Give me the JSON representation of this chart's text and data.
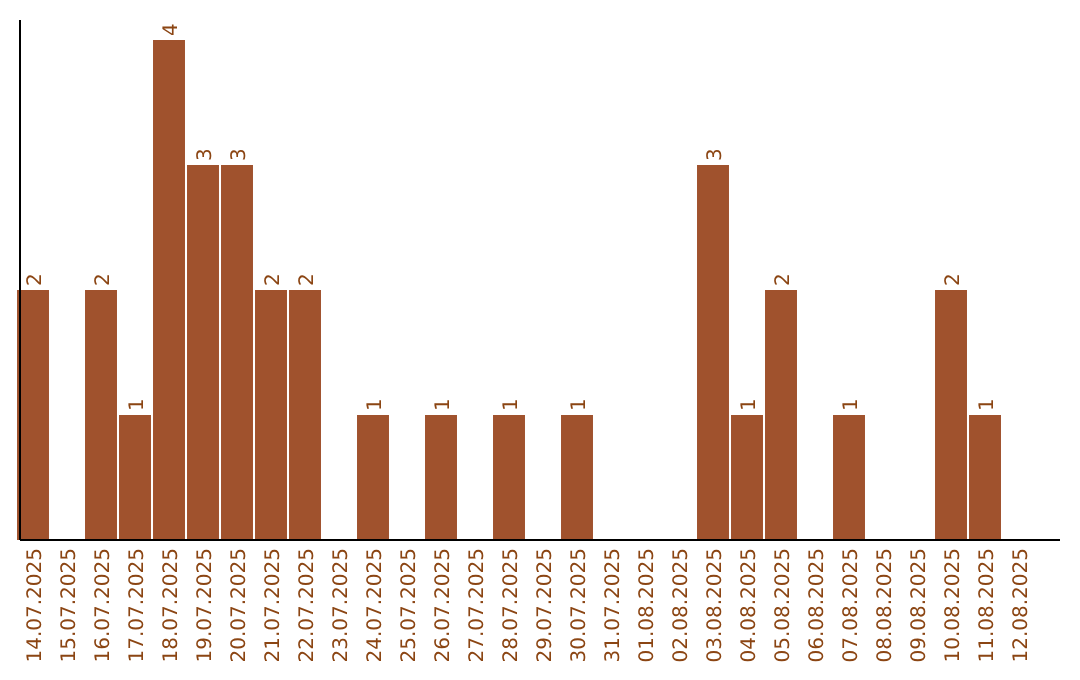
{
  "chart_data": {
    "type": "bar",
    "categories": [
      "14.07.2025",
      "15.07.2025",
      "16.07.2025",
      "17.07.2025",
      "18.07.2025",
      "19.07.2025",
      "20.07.2025",
      "21.07.2025",
      "22.07.2025",
      "23.07.2025",
      "24.07.2025",
      "25.07.2025",
      "26.07.2025",
      "27.07.2025",
      "28.07.2025",
      "29.07.2025",
      "30.07.2025",
      "31.07.2025",
      "01.08.2025",
      "02.08.2025",
      "03.08.2025",
      "04.08.2025",
      "05.08.2025",
      "06.08.2025",
      "07.08.2025",
      "08.08.2025",
      "09.08.2025",
      "10.08.2025",
      "11.08.2025",
      "12.08.2025"
    ],
    "values": [
      2,
      0,
      2,
      1,
      4,
      3,
      3,
      2,
      2,
      0,
      1,
      0,
      1,
      0,
      1,
      0,
      1,
      0,
      0,
      0,
      3,
      1,
      2,
      0,
      1,
      0,
      0,
      2,
      1,
      0
    ],
    "value_labels": [
      "2",
      null,
      "2",
      "1",
      "4",
      "3",
      "3",
      "2",
      "2",
      null,
      "1",
      null,
      "1",
      null,
      "1",
      null,
      "1",
      null,
      null,
      null,
      "3",
      "1",
      "2",
      null,
      "1",
      null,
      null,
      "2",
      "1",
      null
    ],
    "color": "#a0522d",
    "ylim": [
      0,
      4
    ]
  }
}
